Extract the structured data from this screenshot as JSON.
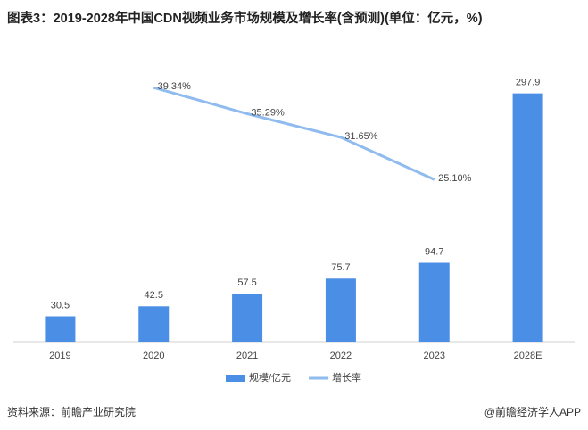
{
  "chart_data": {
    "type": "bar-line",
    "title": "图表3：2019-2028年中国CDN视频业务市场规模及增长率(含预测)(单位：亿元，%)",
    "categories": [
      "2019",
      "2020",
      "2021",
      "2022",
      "2023",
      "2028E"
    ],
    "series": [
      {
        "name": "规模/亿元",
        "type": "bar",
        "color": "#4a8ee5",
        "values": [
          30.5,
          42.5,
          57.5,
          75.7,
          94.7,
          297.9
        ]
      },
      {
        "name": "增长率",
        "type": "line",
        "axis": "y2",
        "color": "#8fbbee",
        "values": [
          null,
          39.34,
          35.29,
          31.65,
          25.1,
          null
        ],
        "value_labels": [
          null,
          "39.34%",
          "35.29%",
          "31.65%",
          "25.10%",
          null
        ]
      }
    ],
    "ylim": [
      0,
      320
    ],
    "y2lim": [
      0,
      41.3
    ],
    "legend": "bottom",
    "source": "资料来源：前瞻产业研究院",
    "credit": "@前瞻经济学人APP"
  }
}
